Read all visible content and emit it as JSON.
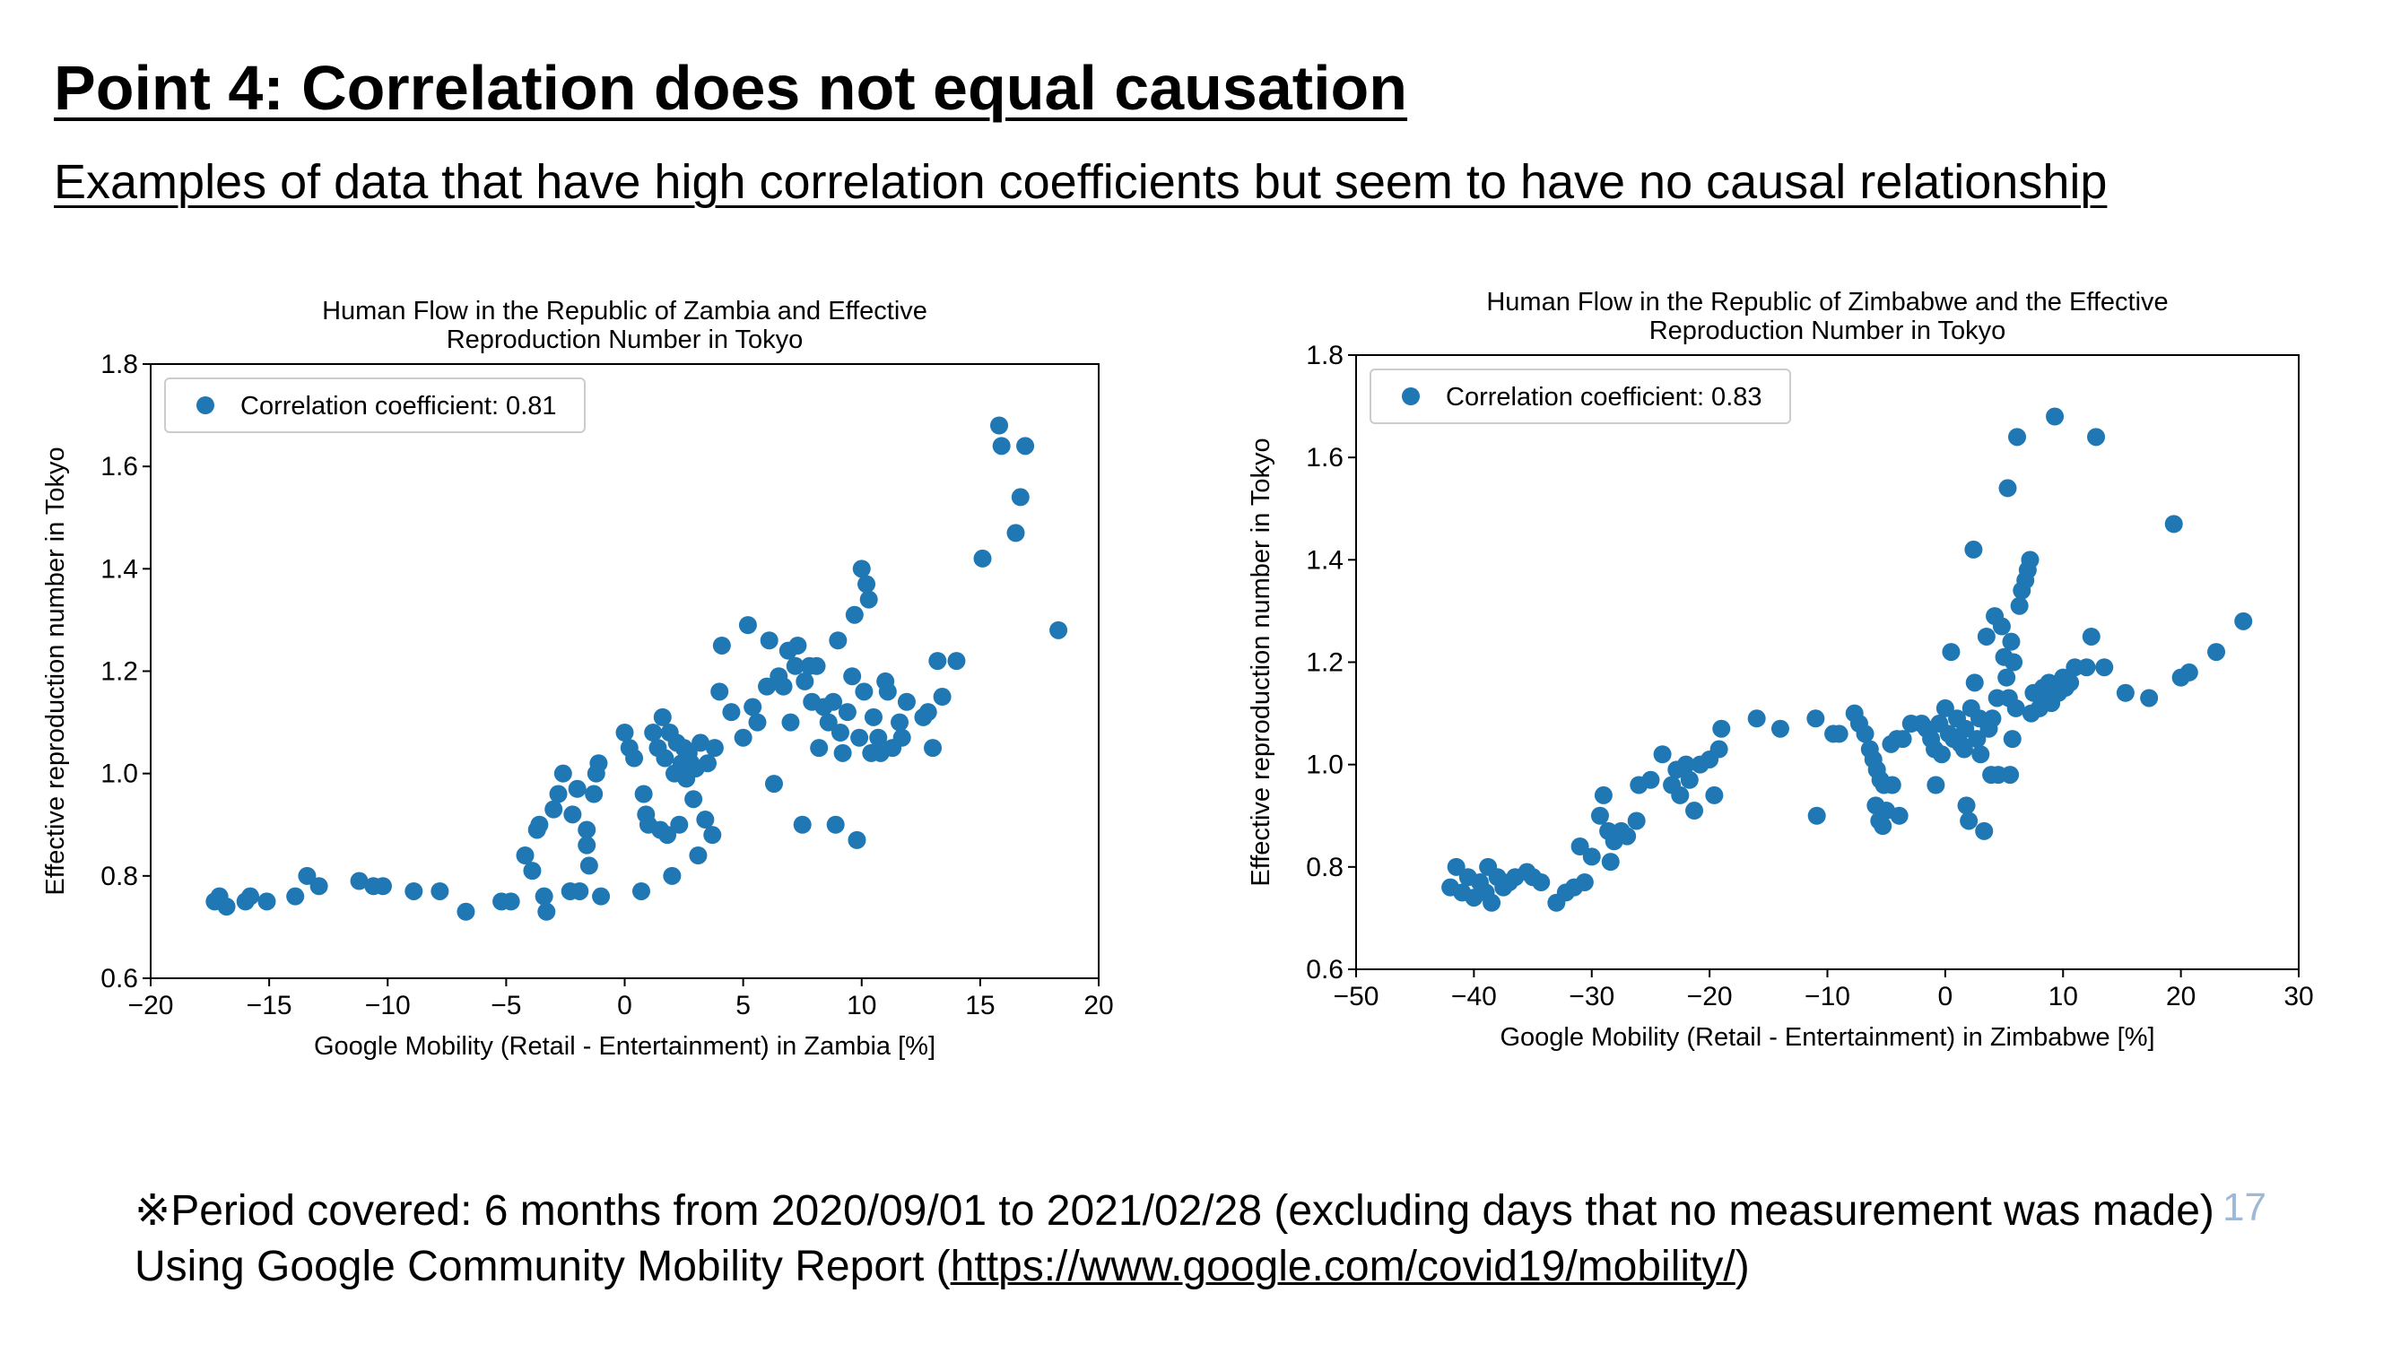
{
  "slide": {
    "title": "Point 4: Correlation does not equal causation",
    "subtitle": "Examples of data that have high correlation coefficients but seem to have no causal relationship",
    "note_line1": "※Period covered: 6 months from 2020/09/01 to 2021/02/28 (excluding days that no measurement was made)",
    "note_line2_prefix": "Using Google Community Mobility Report (",
    "note_link": "https://www.google.com/covid19/mobility/",
    "note_line2_suffix": ")",
    "page_number": "17"
  },
  "chart_data": [
    {
      "type": "scatter",
      "title_lines": [
        "Human Flow in the Republic of Zambia and Effective",
        "Reproduction Number in Tokyo"
      ],
      "xlabel": "Google Mobility (Retail - Entertainment) in Zambia [%]",
      "ylabel": "Effective reproduction number in Tokyo",
      "xlim": [
        -20,
        20
      ],
      "ylim": [
        0.6,
        1.8
      ],
      "xticks": [
        -20,
        -15,
        -10,
        -5,
        0,
        5,
        10,
        15,
        20
      ],
      "xtick_labels": [
        "−20",
        "−15",
        "−10",
        "−5",
        "0",
        "5",
        "10",
        "15",
        "20"
      ],
      "yticks": [
        0.6,
        0.8,
        1.0,
        1.2,
        1.4,
        1.6,
        1.8
      ],
      "ytick_labels": [
        "0.6",
        "0.8",
        "1.0",
        "1.2",
        "1.4",
        "1.6",
        "1.8"
      ],
      "legend": "Correlation coefficient: 0.81",
      "legend_position": "top-left",
      "color": "#1f77b4",
      "points": [
        [
          -17.3,
          0.75
        ],
        [
          -17.1,
          0.76
        ],
        [
          -16.8,
          0.74
        ],
        [
          -16.0,
          0.75
        ],
        [
          -15.8,
          0.76
        ],
        [
          -15.1,
          0.75
        ],
        [
          -13.9,
          0.76
        ],
        [
          -13.4,
          0.8
        ],
        [
          -12.9,
          0.78
        ],
        [
          -11.2,
          0.79
        ],
        [
          -10.6,
          0.78
        ],
        [
          -10.2,
          0.78
        ],
        [
          -8.9,
          0.77
        ],
        [
          -7.8,
          0.77
        ],
        [
          -6.7,
          0.73
        ],
        [
          -5.2,
          0.75
        ],
        [
          -4.8,
          0.75
        ],
        [
          -4.2,
          0.84
        ],
        [
          -3.9,
          0.81
        ],
        [
          -3.7,
          0.89
        ],
        [
          -3.6,
          0.9
        ],
        [
          -3.4,
          0.76
        ],
        [
          -3.3,
          0.73
        ],
        [
          -3.0,
          0.93
        ],
        [
          -2.8,
          0.96
        ],
        [
          -2.6,
          1.0
        ],
        [
          -2.3,
          0.77
        ],
        [
          -2.2,
          0.92
        ],
        [
          -2.0,
          0.97
        ],
        [
          -1.9,
          0.77
        ],
        [
          -1.6,
          0.89
        ],
        [
          -1.6,
          0.86
        ],
        [
          -1.5,
          0.82
        ],
        [
          -1.3,
          0.96
        ],
        [
          -1.2,
          1.0
        ],
        [
          -1.1,
          1.02
        ],
        [
          -1.0,
          0.76
        ],
        [
          0.0,
          1.08
        ],
        [
          0.2,
          1.05
        ],
        [
          0.4,
          1.03
        ],
        [
          0.7,
          0.77
        ],
        [
          0.9,
          0.92
        ],
        [
          0.8,
          0.96
        ],
        [
          1.0,
          0.9
        ],
        [
          1.2,
          1.08
        ],
        [
          1.4,
          1.05
        ],
        [
          1.5,
          0.89
        ],
        [
          1.6,
          1.11
        ],
        [
          1.7,
          1.03
        ],
        [
          1.8,
          0.88
        ],
        [
          1.9,
          1.08
        ],
        [
          2.0,
          0.8
        ],
        [
          2.1,
          1.0
        ],
        [
          2.2,
          1.06
        ],
        [
          2.3,
          0.9
        ],
        [
          2.4,
          1.02
        ],
        [
          2.5,
          1.05
        ],
        [
          2.6,
          0.99
        ],
        [
          2.7,
          1.04
        ],
        [
          2.8,
          1.02
        ],
        [
          2.9,
          0.95
        ],
        [
          3.0,
          1.01
        ],
        [
          3.1,
          0.84
        ],
        [
          3.2,
          1.06
        ],
        [
          3.4,
          0.91
        ],
        [
          3.5,
          1.02
        ],
        [
          3.7,
          0.88
        ],
        [
          3.8,
          1.05
        ],
        [
          4.0,
          1.16
        ],
        [
          4.1,
          1.25
        ],
        [
          4.5,
          1.12
        ],
        [
          5.0,
          1.07
        ],
        [
          5.2,
          1.29
        ],
        [
          5.4,
          1.13
        ],
        [
          5.6,
          1.1
        ],
        [
          6.0,
          1.17
        ],
        [
          6.1,
          1.26
        ],
        [
          6.3,
          0.98
        ],
        [
          6.5,
          1.19
        ],
        [
          6.7,
          1.17
        ],
        [
          6.9,
          1.24
        ],
        [
          7.0,
          1.1
        ],
        [
          7.2,
          1.21
        ],
        [
          7.3,
          1.25
        ],
        [
          7.5,
          0.9
        ],
        [
          7.6,
          1.18
        ],
        [
          7.8,
          1.21
        ],
        [
          7.9,
          1.14
        ],
        [
          8.1,
          1.21
        ],
        [
          8.2,
          1.05
        ],
        [
          8.4,
          1.13
        ],
        [
          8.6,
          1.1
        ],
        [
          8.8,
          1.14
        ],
        [
          8.9,
          0.9
        ],
        [
          9.0,
          1.26
        ],
        [
          9.1,
          1.08
        ],
        [
          9.2,
          1.04
        ],
        [
          9.4,
          1.12
        ],
        [
          9.6,
          1.19
        ],
        [
          9.7,
          1.31
        ],
        [
          9.8,
          0.87
        ],
        [
          9.9,
          1.07
        ],
        [
          10.0,
          1.4
        ],
        [
          10.1,
          1.16
        ],
        [
          10.2,
          1.37
        ],
        [
          10.3,
          1.34
        ],
        [
          10.4,
          1.04
        ],
        [
          10.5,
          1.11
        ],
        [
          10.7,
          1.07
        ],
        [
          10.8,
          1.04
        ],
        [
          11.0,
          1.18
        ],
        [
          11.1,
          1.16
        ],
        [
          11.3,
          1.05
        ],
        [
          11.6,
          1.1
        ],
        [
          11.7,
          1.07
        ],
        [
          11.9,
          1.14
        ],
        [
          12.6,
          1.11
        ],
        [
          12.8,
          1.12
        ],
        [
          13.0,
          1.05
        ],
        [
          13.2,
          1.22
        ],
        [
          13.4,
          1.15
        ],
        [
          14.0,
          1.22
        ],
        [
          15.1,
          1.42
        ],
        [
          15.8,
          1.68
        ],
        [
          15.9,
          1.64
        ],
        [
          16.5,
          1.47
        ],
        [
          16.7,
          1.54
        ],
        [
          16.9,
          1.64
        ],
        [
          18.3,
          1.28
        ]
      ]
    },
    {
      "type": "scatter",
      "title_lines": [
        "Human Flow in the Republic of Zimbabwe and the Effective",
        "Reproduction Number in Tokyo"
      ],
      "xlabel": "Google Mobility (Retail - Entertainment) in Zimbabwe [%]",
      "ylabel": "Effective reproduction number in Tokyo",
      "xlim": [
        -50,
        30
      ],
      "ylim": [
        0.6,
        1.8
      ],
      "xticks": [
        -50,
        -40,
        -30,
        -20,
        -10,
        0,
        10,
        20,
        30
      ],
      "xtick_labels": [
        "−50",
        "−40",
        "−30",
        "−20",
        "−10",
        "0",
        "10",
        "20",
        "30"
      ],
      "yticks": [
        0.6,
        0.8,
        1.0,
        1.2,
        1.4,
        1.6,
        1.8
      ],
      "ytick_labels": [
        "0.6",
        "0.8",
        "1.0",
        "1.2",
        "1.4",
        "1.6",
        "1.8"
      ],
      "legend": "Correlation coefficient: 0.83",
      "legend_position": "top-left",
      "color": "#1f77b4",
      "points": [
        [
          -42.0,
          0.76
        ],
        [
          -41.5,
          0.8
        ],
        [
          -41.0,
          0.75
        ],
        [
          -40.5,
          0.78
        ],
        [
          -40.0,
          0.74
        ],
        [
          -39.5,
          0.77
        ],
        [
          -39.0,
          0.75
        ],
        [
          -38.8,
          0.8
        ],
        [
          -38.5,
          0.73
        ],
        [
          -38.0,
          0.78
        ],
        [
          -37.5,
          0.76
        ],
        [
          -37.0,
          0.77
        ],
        [
          -36.5,
          0.78
        ],
        [
          -35.5,
          0.79
        ],
        [
          -35.0,
          0.78
        ],
        [
          -34.3,
          0.77
        ],
        [
          -33.0,
          0.73
        ],
        [
          -32.2,
          0.75
        ],
        [
          -31.5,
          0.76
        ],
        [
          -30.6,
          0.77
        ],
        [
          -31.0,
          0.84
        ],
        [
          -30.0,
          0.82
        ],
        [
          -29.3,
          0.9
        ],
        [
          -29.0,
          0.94
        ],
        [
          -28.6,
          0.87
        ],
        [
          -28.4,
          0.81
        ],
        [
          -28.1,
          0.85
        ],
        [
          -27.5,
          0.87
        ],
        [
          -27.0,
          0.86
        ],
        [
          -26.2,
          0.89
        ],
        [
          -26.0,
          0.96
        ],
        [
          -25.0,
          0.97
        ],
        [
          -24.0,
          1.02
        ],
        [
          -23.2,
          0.96
        ],
        [
          -22.8,
          0.99
        ],
        [
          -22.5,
          0.94
        ],
        [
          -22.0,
          1.0
        ],
        [
          -21.7,
          0.97
        ],
        [
          -21.3,
          0.91
        ],
        [
          -20.8,
          1.0
        ],
        [
          -20.0,
          1.01
        ],
        [
          -19.6,
          0.94
        ],
        [
          -19.2,
          1.03
        ],
        [
          -19.0,
          1.07
        ],
        [
          -16.0,
          1.09
        ],
        [
          -14.0,
          1.07
        ],
        [
          -11.0,
          1.09
        ],
        [
          -10.9,
          0.9
        ],
        [
          -9.5,
          1.06
        ],
        [
          -9.0,
          1.06
        ],
        [
          -7.7,
          1.1
        ],
        [
          -7.3,
          1.08
        ],
        [
          -6.8,
          1.06
        ],
        [
          -6.4,
          1.03
        ],
        [
          -6.1,
          1.01
        ],
        [
          -5.8,
          0.99
        ],
        [
          -5.5,
          0.97
        ],
        [
          -5.9,
          0.92
        ],
        [
          -5.6,
          0.89
        ],
        [
          -5.3,
          0.88
        ],
        [
          -5.2,
          0.96
        ],
        [
          -5.0,
          0.91
        ],
        [
          -4.6,
          1.04
        ],
        [
          -4.5,
          0.96
        ],
        [
          -4.1,
          1.05
        ],
        [
          -3.9,
          0.9
        ],
        [
          -3.6,
          1.05
        ],
        [
          -2.9,
          1.08
        ],
        [
          -2.0,
          1.08
        ],
        [
          -1.6,
          1.07
        ],
        [
          -1.2,
          1.05
        ],
        [
          -0.9,
          1.03
        ],
        [
          -0.8,
          0.96
        ],
        [
          -0.5,
          1.08
        ],
        [
          -0.3,
          1.02
        ],
        [
          0.0,
          1.11
        ],
        [
          0.3,
          1.06
        ],
        [
          0.5,
          1.22
        ],
        [
          0.7,
          1.05
        ],
        [
          1.0,
          1.09
        ],
        [
          1.3,
          1.04
        ],
        [
          1.6,
          1.03
        ],
        [
          1.7,
          1.07
        ],
        [
          1.8,
          0.92
        ],
        [
          2.0,
          0.89
        ],
        [
          2.2,
          1.11
        ],
        [
          2.4,
          1.42
        ],
        [
          2.5,
          1.16
        ],
        [
          2.7,
          1.05
        ],
        [
          2.9,
          1.09
        ],
        [
          3.0,
          1.02
        ],
        [
          3.3,
          0.87
        ],
        [
          3.5,
          1.25
        ],
        [
          3.7,
          1.07
        ],
        [
          3.9,
          0.98
        ],
        [
          4.0,
          1.09
        ],
        [
          4.2,
          1.29
        ],
        [
          4.4,
          1.13
        ],
        [
          4.5,
          0.98
        ],
        [
          4.8,
          1.27
        ],
        [
          5.0,
          1.21
        ],
        [
          5.2,
          1.17
        ],
        [
          5.3,
          1.54
        ],
        [
          5.4,
          1.13
        ],
        [
          5.5,
          0.98
        ],
        [
          5.6,
          1.24
        ],
        [
          5.7,
          1.05
        ],
        [
          5.8,
          1.2
        ],
        [
          6.0,
          1.11
        ],
        [
          6.1,
          1.64
        ],
        [
          6.3,
          1.31
        ],
        [
          6.5,
          1.34
        ],
        [
          6.8,
          1.36
        ],
        [
          7.0,
          1.38
        ],
        [
          7.2,
          1.4
        ],
        [
          7.3,
          1.1
        ],
        [
          7.5,
          1.14
        ],
        [
          8.0,
          1.11
        ],
        [
          8.3,
          1.15
        ],
        [
          8.5,
          1.13
        ],
        [
          8.8,
          1.16
        ],
        [
          9.0,
          1.12
        ],
        [
          9.3,
          1.68
        ],
        [
          9.6,
          1.14
        ],
        [
          10.0,
          1.17
        ],
        [
          10.2,
          1.15
        ],
        [
          10.6,
          1.16
        ],
        [
          11.0,
          1.19
        ],
        [
          12.0,
          1.19
        ],
        [
          12.4,
          1.25
        ],
        [
          12.8,
          1.64
        ],
        [
          13.5,
          1.19
        ],
        [
          15.3,
          1.14
        ],
        [
          17.3,
          1.13
        ],
        [
          19.4,
          1.47
        ],
        [
          20.0,
          1.17
        ],
        [
          20.7,
          1.18
        ],
        [
          23.0,
          1.22
        ],
        [
          25.3,
          1.28
        ]
      ]
    }
  ]
}
